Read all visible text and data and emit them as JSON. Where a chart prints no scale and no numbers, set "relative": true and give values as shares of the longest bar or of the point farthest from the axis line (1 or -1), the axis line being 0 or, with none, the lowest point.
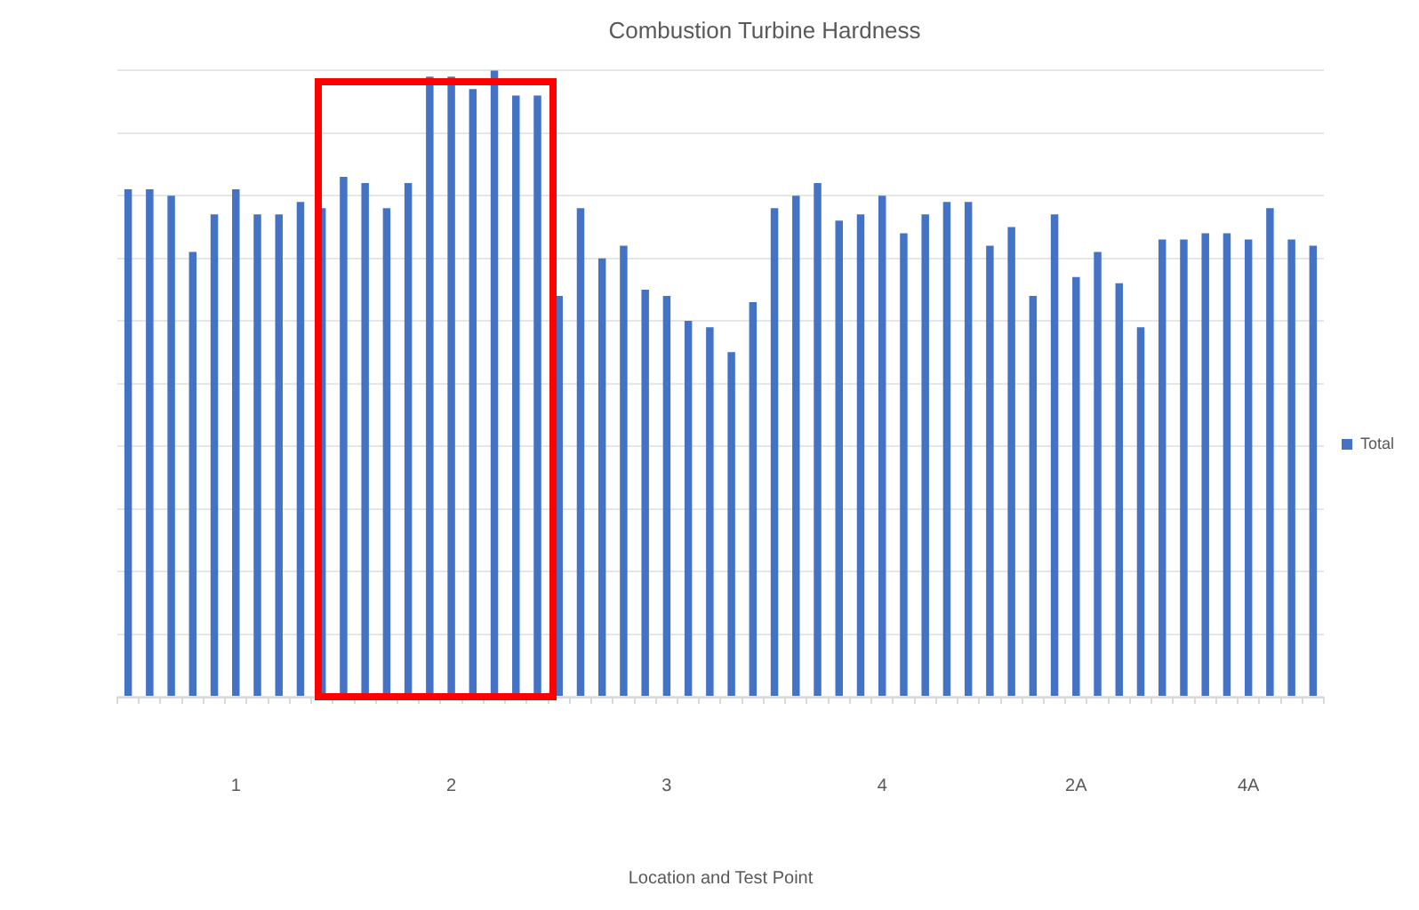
{
  "chart_data": {
    "type": "bar",
    "title": "Combustion Turbine Hardness",
    "xlabel": "Location and Test Point",
    "relative": true,
    "grid": "y",
    "legend": "right",
    "categories": [
      null,
      null,
      null,
      null,
      null,
      "1",
      null,
      null,
      null,
      null,
      null,
      null,
      null,
      null,
      null,
      "2",
      null,
      null,
      null,
      null,
      null,
      null,
      null,
      null,
      null,
      "3",
      null,
      null,
      null,
      null,
      null,
      null,
      null,
      null,
      null,
      "4",
      null,
      null,
      null,
      null,
      null,
      null,
      null,
      null,
      "2A",
      null,
      null,
      null,
      null,
      null,
      null,
      null,
      "4A",
      null,
      null,
      null
    ],
    "series": [
      {
        "name": "Total",
        "color": "#4472c4",
        "values": [
          0.81,
          0.81,
          0.8,
          0.71,
          0.77,
          0.81,
          0.77,
          0.77,
          0.79,
          0.78,
          0.83,
          0.82,
          0.78,
          0.82,
          0.99,
          0.99,
          0.97,
          1,
          0.96,
          0.96,
          0.64,
          0.78,
          0.7,
          0.72,
          0.65,
          0.64,
          0.6,
          0.59,
          0.55,
          0.63,
          0.78,
          0.8,
          0.82,
          0.76,
          0.77,
          0.8,
          0.74,
          0.77,
          0.79,
          0.79,
          0.72,
          0.75,
          0.64,
          0.77,
          0.67,
          0.71,
          0.66,
          0.59,
          0.73,
          0.73,
          0.74,
          0.74,
          0.73,
          0.78,
          0.73,
          0.72
        ]
      }
    ]
  }
}
